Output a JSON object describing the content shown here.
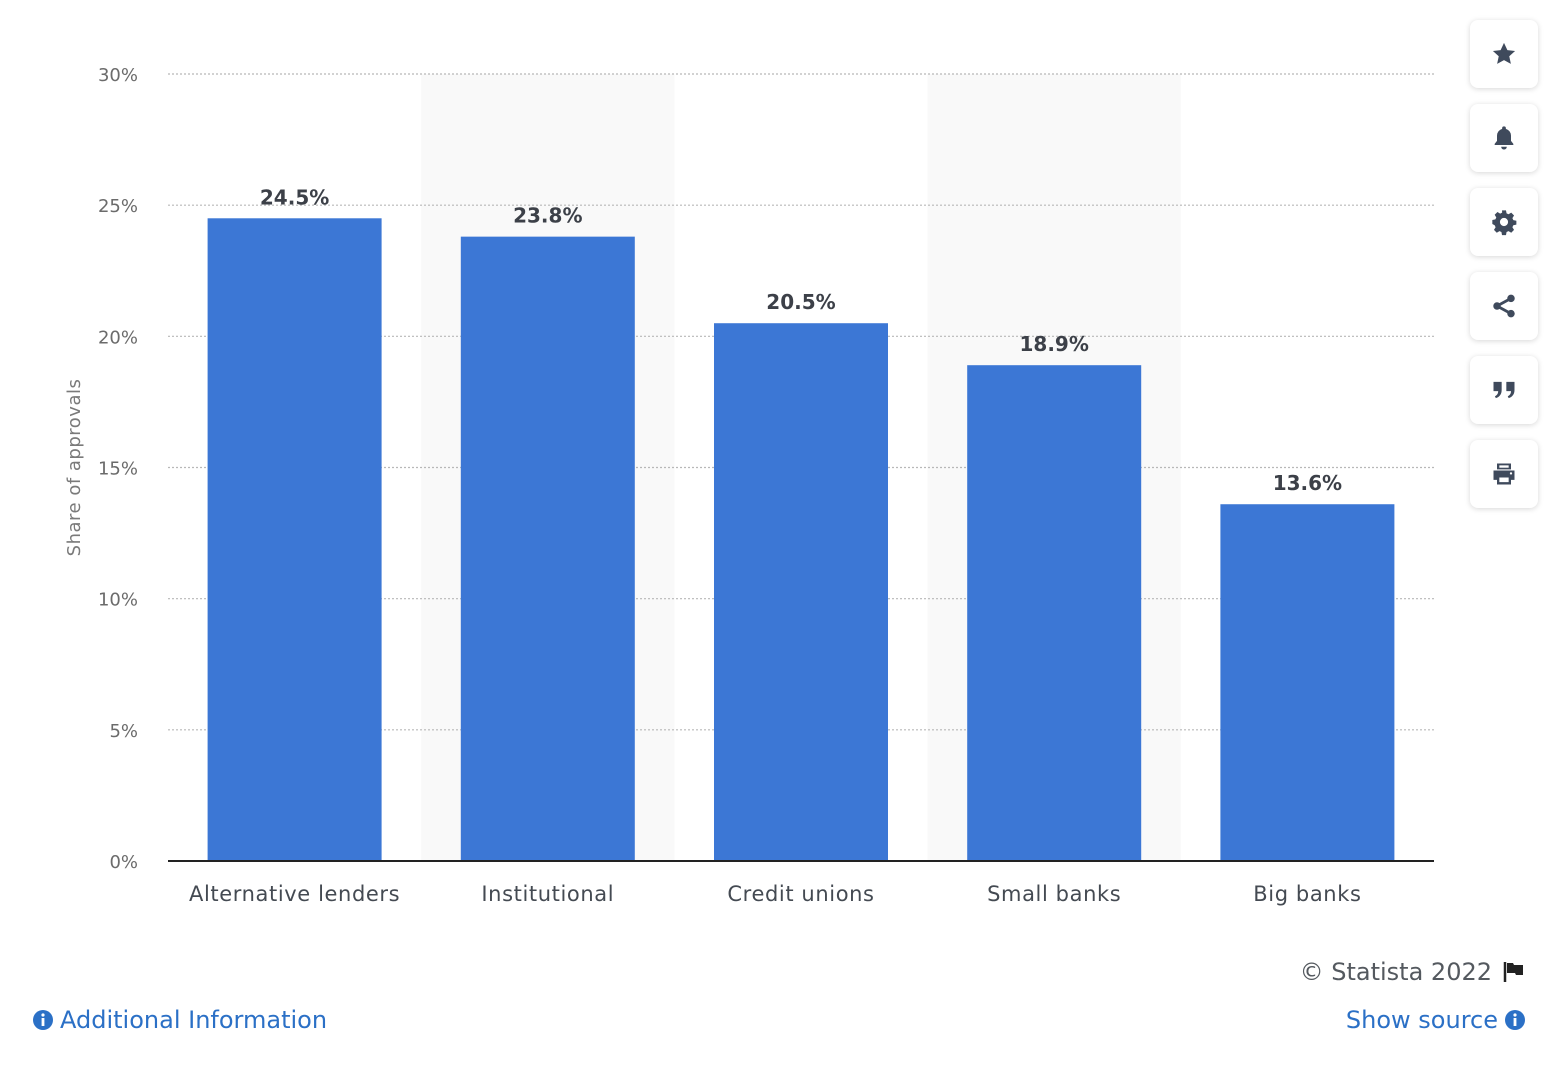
{
  "chart_data": {
    "type": "bar",
    "categories": [
      "Alternative lenders",
      "Institutional",
      "Credit unions",
      "Small banks",
      "Big banks"
    ],
    "values": [
      24.5,
      23.8,
      20.5,
      18.9,
      13.6
    ],
    "data_labels": [
      "24.5%",
      "23.8%",
      "20.5%",
      "18.9%",
      "13.6%"
    ],
    "ylabel": "Share of approvals",
    "ylim": [
      0,
      30
    ],
    "yticks": [
      0,
      5,
      10,
      15,
      20,
      25,
      30
    ],
    "ytick_labels": [
      "0%",
      "5%",
      "10%",
      "15%",
      "20%",
      "25%",
      "30%"
    ],
    "grid": true,
    "bar_color": "#3c77d5",
    "band_color": "#f9f9f9"
  },
  "toolbar": {
    "buttons": [
      "star-icon",
      "bell-icon",
      "gear-icon",
      "share-icon",
      "quote-icon",
      "print-icon"
    ]
  },
  "footer": {
    "copyright": "© Statista 2022",
    "additional_info": "Additional Information",
    "show_source": "Show source"
  }
}
